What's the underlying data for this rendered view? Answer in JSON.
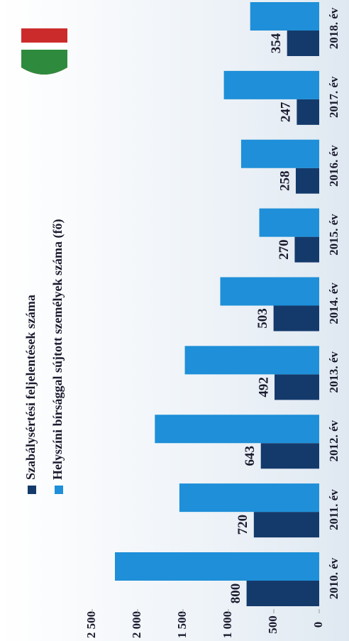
{
  "chart_data": {
    "type": "bar",
    "categories": [
      "2010. év",
      "2011. év",
      "2012. év",
      "2013. év",
      "2014. év",
      "2015. év",
      "2016. év",
      "2017. év",
      "2018. év"
    ],
    "series": [
      {
        "name": "Szabálysértési feljelentések száma",
        "color": "#143a6b",
        "values": [
          800,
          720,
          643,
          492,
          503,
          270,
          258,
          247,
          354
        ]
      },
      {
        "name": "Helyszíni bírsággal sújtott személyek száma (fő)",
        "color": "#1e8fd8",
        "values": [
          2250,
          1540,
          1810,
          1480,
          1090,
          660,
          860,
          1050,
          760
        ]
      }
    ],
    "ylim": [
      0,
      2500
    ],
    "yticks": [
      0,
      500,
      {
        "value": 1000,
        "label": "1 000"
      },
      {
        "value": 1500,
        "label": "1 500"
      },
      {
        "value": 2000,
        "label": "2 000"
      },
      {
        "value": 2500,
        "label": "2 500"
      }
    ]
  }
}
